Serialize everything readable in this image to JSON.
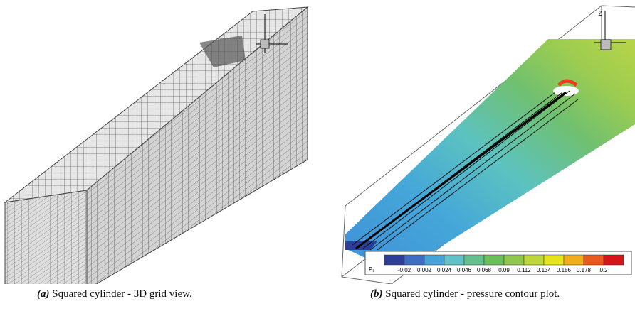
{
  "figures": [
    {
      "tag": "(a)",
      "caption": "Squared cylinder - 3D grid view."
    },
    {
      "tag": "(b)",
      "caption": "Squared cylinder - pressure contour plot.",
      "axis_label": "Z",
      "colorbar": {
        "variable": "P₁",
        "labels": [
          "-0.02",
          "0.002",
          "0.024",
          "0.046",
          "0.068",
          "0.09",
          "0.112",
          "0.134",
          "0.156",
          "0.178",
          "0.2"
        ],
        "colors": [
          "#2c3e9a",
          "#3f6cc4",
          "#45a3da",
          "#5fc2c6",
          "#63c08e",
          "#6cbe5a",
          "#8fc84a",
          "#bcd63c",
          "#e6e21e",
          "#f2ac1e",
          "#ea5a1e",
          "#d4161a"
        ]
      }
    }
  ]
}
